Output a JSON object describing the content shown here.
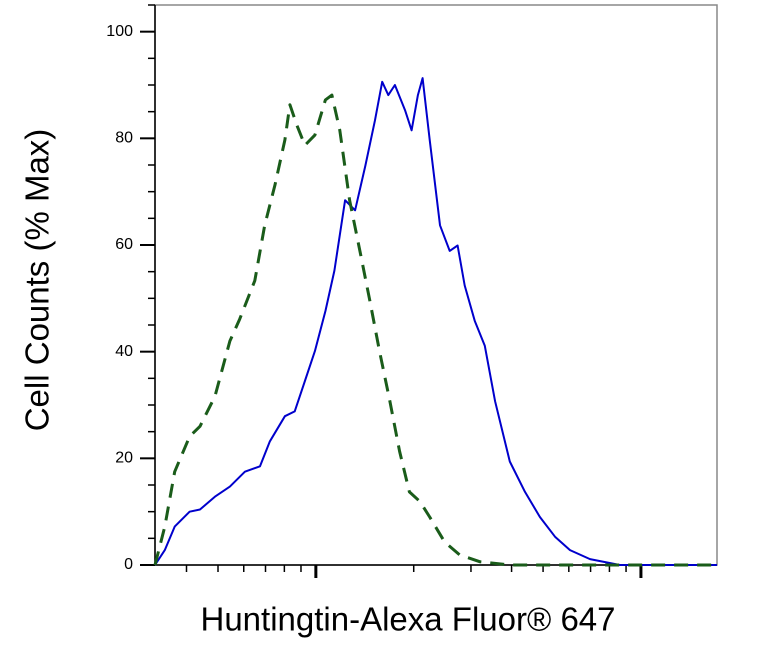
{
  "chart_data": {
    "type": "line",
    "xlabel": "Huntingtin-Alexa Fluor® 647",
    "ylabel": "Cell Counts (% Max)",
    "xscale": "log",
    "xlim": [
      32,
      1714
    ],
    "xticks": [
      40,
      50,
      60,
      70,
      80,
      90,
      100,
      200,
      300,
      400,
      500,
      600,
      700,
      800,
      900,
      1000
    ],
    "ylim": [
      0,
      105
    ],
    "yticks": [
      0,
      20,
      40,
      60,
      80,
      100
    ],
    "yticks_minor": [
      5,
      10,
      15,
      25,
      30,
      35,
      45,
      50,
      55,
      65,
      70,
      75,
      85,
      90,
      95,
      105
    ],
    "series": [
      {
        "color": "#0000cc",
        "dash": false,
        "x": [
          32,
          34.3,
          36.8,
          40.9,
          44,
          48.9,
          54.4,
          60.5,
          67.3,
          72.2,
          80.3,
          86.1,
          92.5,
          99.3,
          107,
          114,
          123,
          132,
          142,
          152,
          160,
          167,
          175,
          188,
          197,
          206,
          213,
          224,
          241,
          258,
          273,
          287,
          308,
          331,
          356,
          395,
          440,
          489,
          544,
          605,
          697,
          861,
          1143,
          1714
        ],
        "values": [
          0,
          2.8,
          7.2,
          10,
          10.4,
          12.8,
          14.7,
          17.5,
          18.5,
          23.2,
          27.9,
          28.8,
          34.5,
          40.1,
          47.6,
          55.2,
          68.4,
          66.5,
          74.9,
          83.4,
          90.6,
          88.1,
          90,
          85.3,
          81.5,
          88.1,
          91.3,
          79.7,
          63.7,
          58.9,
          59.9,
          52.4,
          45.8,
          41.1,
          30.7,
          19.4,
          13.7,
          9,
          5.3,
          2.8,
          1.1,
          0,
          0,
          0
        ]
      },
      {
        "color": "#1a5c1a",
        "dash": true,
        "x": [
          32,
          34.3,
          36.8,
          40.9,
          44,
          48.9,
          54.4,
          58.3,
          64.9,
          69.6,
          74.8,
          80.3,
          83.2,
          87.4,
          92.5,
          99.3,
          107,
          112,
          118.5,
          127,
          136.6,
          146.6,
          157,
          169,
          181,
          194,
          209,
          224,
          249,
          277,
          320,
          395,
          748,
          1714
        ],
        "values": [
          0,
          7.2,
          17.5,
          24.1,
          26,
          31.6,
          42,
          46.1,
          53.3,
          63.7,
          71.2,
          79.7,
          86.3,
          82.5,
          78.7,
          80.6,
          87.2,
          88.1,
          81.5,
          68.4,
          58.9,
          49.5,
          40.1,
          30.7,
          21.3,
          13.7,
          11.9,
          9,
          4.3,
          1.9,
          0.6,
          0,
          0,
          0
        ]
      }
    ]
  }
}
